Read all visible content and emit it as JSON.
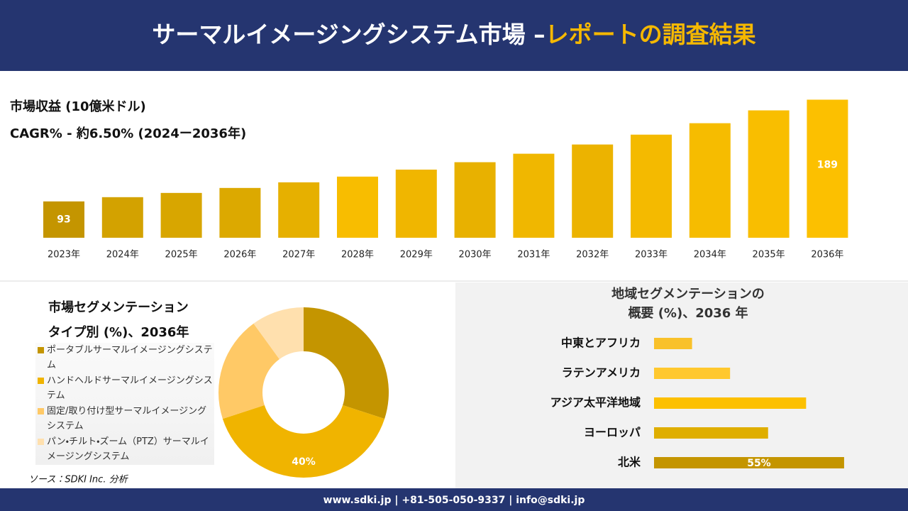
{
  "header": {
    "title": "サーマルイメージングシステム市場 –",
    "title_highlight": "レポートの調査結果"
  },
  "chart_data": [
    {
      "type": "bar",
      "title": "市場収益 (10億米ドル)",
      "subtitle": "CAGR% - 約6.50% (2024ー2036年)",
      "categories": [
        "2023年",
        "2024年",
        "2025年",
        "2026年",
        "2027年",
        "2028年",
        "2029年",
        "2030年",
        "2031年",
        "2032年",
        "2033年",
        "2034年",
        "2035年",
        "2036年"
      ],
      "values": [
        93,
        97,
        101,
        105.7,
        111,
        116.4,
        123,
        130,
        138,
        146.7,
        156,
        166.8,
        178.9,
        189
      ],
      "value_labels": [
        "93",
        null,
        null,
        null,
        null,
        null,
        null,
        null,
        null,
        null,
        null,
        null,
        null,
        "189"
      ],
      "colors": [
        "#c49500",
        "#d3a200",
        "#d8a600",
        "#dca900",
        "#e6b000",
        "#f8bd00",
        "#f0b600",
        "#e8b100",
        "#f0b700",
        "#ecb300",
        "#f4ba00",
        "#f6bc00",
        "#f9be00",
        "#fcc000"
      ],
      "ylim": [
        58.7,
        196
      ]
    },
    {
      "type": "donut",
      "title": "市場セグメンテーション",
      "subtitle": "タイプ別 (%)、2036年",
      "categories": [
        "ポータブルサーマルイメージングシステム",
        "ハンドヘルドサーマルイメージングシステム",
        "固定/取り付け型サーマルイメージングシステム",
        "パン・チルト・ズーム（PTZ）サーマルイメージングシステム"
      ],
      "values": [
        30,
        40,
        20,
        10
      ],
      "value_labels": [
        null,
        "40%",
        null,
        null
      ],
      "colors": [
        "#c49500",
        "#f0b400",
        "#ffc966",
        "#ffe0ae"
      ]
    },
    {
      "type": "hbar",
      "title": "地域セグメンテーションの",
      "subtitle": "概要 (%)、2036 年",
      "categories": [
        "中東とアフリカ",
        "ラテンアメリカ",
        "アジア太平洋地域",
        "ヨーロッパ",
        "北米"
      ],
      "values": [
        11,
        22,
        44,
        33,
        55
      ],
      "value_labels": [
        null,
        null,
        null,
        null,
        "55%"
      ],
      "colors": [
        "#f9c12a",
        "#ffc82e",
        "#fcc000",
        "#dfae00",
        "#c49500"
      ],
      "xlim": [
        0,
        70
      ]
    }
  ],
  "source": "ソース：SDKI Inc. 分析",
  "footer": "www.sdki.jp | +81-505-050-9337 | info@sdki.jp"
}
